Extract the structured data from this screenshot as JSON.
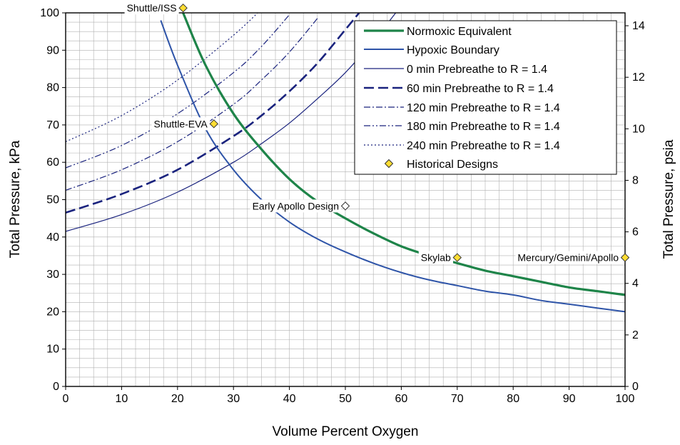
{
  "chart_data": {
    "type": "line",
    "title": "",
    "xlabel": "Volume Percent Oxygen",
    "ylabel": "Total Pressure, kPa",
    "y2label": "Total Pressure, psia",
    "xlim": [
      0,
      100
    ],
    "ylim": [
      0,
      100
    ],
    "y2lim": [
      0,
      14.5
    ],
    "xticks": [
      0,
      10,
      20,
      30,
      40,
      50,
      60,
      70,
      80,
      90,
      100
    ],
    "yticks": [
      0,
      10,
      20,
      30,
      40,
      50,
      60,
      70,
      80,
      90,
      100
    ],
    "y2ticks": [
      0,
      2,
      4,
      6,
      8,
      10,
      12,
      14
    ],
    "grid": true,
    "legend_position": "top-right",
    "series": [
      {
        "name": "Normoxic Equivalent",
        "color": "#1e8449",
        "style": "solid-thick",
        "x": [
          21,
          25,
          30,
          35,
          40,
          45,
          50,
          55,
          60,
          65,
          70,
          75,
          80,
          85,
          90,
          95,
          100
        ],
        "y": [
          100,
          86,
          73,
          63.5,
          55.5,
          49.5,
          45,
          41,
          37.5,
          35,
          33,
          31,
          29.5,
          28,
          26.5,
          25.5,
          24.5
        ]
      },
      {
        "name": "Hypoxic Boundary",
        "color": "#2e54a8",
        "style": "solid",
        "x": [
          17,
          20,
          25,
          30,
          35,
          40,
          45,
          50,
          55,
          60,
          65,
          70,
          75,
          80,
          85,
          90,
          95,
          100
        ],
        "y": [
          98,
          86,
          69,
          58,
          50,
          44,
          39.5,
          36,
          33,
          30.5,
          28.5,
          27,
          25.5,
          24.5,
          23,
          22,
          21,
          20
        ]
      },
      {
        "name": "0 min Prebreathe to R = 1.4",
        "color": "#1a237e",
        "style": "solid-thin",
        "x": [
          0,
          10,
          20,
          30,
          35,
          40,
          45,
          50,
          55,
          60,
          65
        ],
        "y": [
          41.5,
          46,
          52,
          60,
          65,
          70.5,
          77,
          84,
          92.5,
          102,
          113
        ]
      },
      {
        "name": "60 min Prebreathe to R = 1.4",
        "color": "#1a237e",
        "style": "dash-thick",
        "x": [
          0,
          10,
          20,
          30,
          35,
          40,
          45,
          50,
          53
        ],
        "y": [
          46.5,
          51.5,
          58,
          67,
          72.5,
          79,
          86.5,
          95.5,
          101
        ]
      },
      {
        "name": "120 min Prebreathe to R = 1.4",
        "color": "#1a237e",
        "style": "dash-dot",
        "x": [
          0,
          10,
          20,
          30,
          35,
          40,
          45
        ],
        "y": [
          52.5,
          58,
          65.5,
          75.5,
          82,
          89.5,
          98.5
        ]
      },
      {
        "name": "180 min Prebreathe to R = 1.4",
        "color": "#1a237e",
        "style": "dash-dot-dot",
        "x": [
          0,
          10,
          20,
          30,
          35,
          40
        ],
        "y": [
          58.5,
          64.5,
          73,
          84,
          91,
          99.5
        ]
      },
      {
        "name": "240 min Prebreathe to R = 1.4",
        "color": "#1a237e",
        "style": "dotted",
        "x": [
          0,
          10,
          20,
          30,
          35
        ],
        "y": [
          65.5,
          72.5,
          82,
          94,
          101
        ]
      }
    ],
    "historical_series_name": "Historical Designs",
    "historical_designs": [
      {
        "label": "Shuttle/ISS",
        "x": 21,
        "y": 101.3,
        "filled": true
      },
      {
        "label": "Shuttle-EVA",
        "x": 26.5,
        "y": 70.3,
        "filled": true
      },
      {
        "label": "Early Apollo Design",
        "x": 50,
        "y": 48.3,
        "filled": false
      },
      {
        "label": "Skylab",
        "x": 70,
        "y": 34.5,
        "filled": true
      },
      {
        "label": "Mercury/Gemini/Apollo",
        "x": 100,
        "y": 34.5,
        "filled": true
      }
    ],
    "colors": {
      "historical_marker": "#ffdd33",
      "marker_outline": "#333333",
      "grid": "#b0b0b0",
      "axis": "#000000"
    }
  }
}
